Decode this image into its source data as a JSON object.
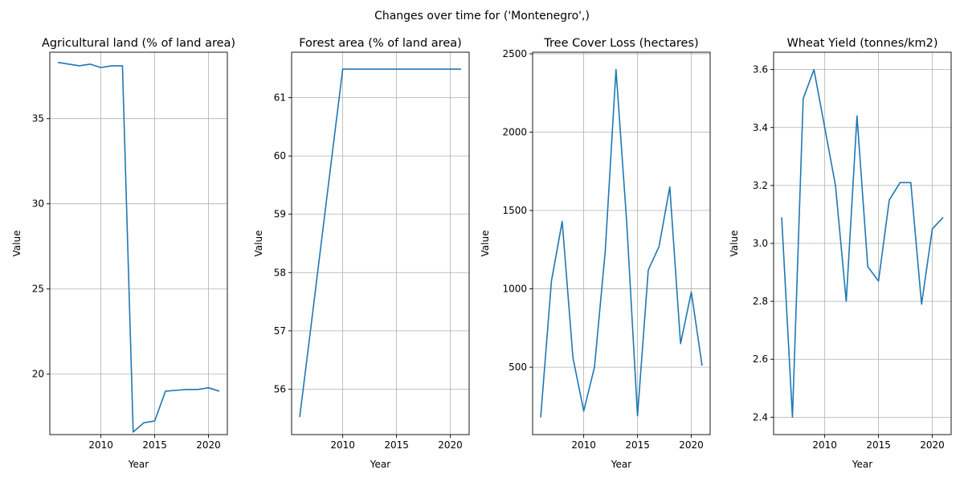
{
  "figure": {
    "suptitle": "Changes over time for ('Montenegro',)",
    "line_color": "#1f77b4",
    "grid_color": "#b0b0b0"
  },
  "chart_data": [
    {
      "type": "line",
      "title": "Agricultural land (% of land area)",
      "xlabel": "Year",
      "ylabel": "Value",
      "grid": true,
      "xlim": [
        2005.25,
        2021.75
      ],
      "ylim": [
        16.45,
        38.9
      ],
      "xticks": [
        2010,
        2015,
        2020
      ],
      "yticks": [
        20,
        25,
        30,
        35
      ],
      "x": [
        2006,
        2007,
        2008,
        2009,
        2010,
        2011,
        2012,
        2013,
        2014,
        2015,
        2016,
        2017,
        2018,
        2019,
        2020,
        2021
      ],
      "y": [
        38.3,
        38.2,
        38.1,
        38.2,
        38.0,
        38.1,
        38.1,
        16.6,
        17.15,
        17.25,
        19.0,
        19.05,
        19.1,
        19.1,
        19.2,
        19.0
      ]
    },
    {
      "type": "line",
      "title": "Forest area (% of land area)",
      "xlabel": "Year",
      "ylabel": "Value",
      "grid": true,
      "xlim": [
        2005.25,
        2021.75
      ],
      "ylim": [
        55.22,
        61.78
      ],
      "xticks": [
        2010,
        2015,
        2020
      ],
      "yticks": [
        56,
        57,
        58,
        59,
        60,
        61
      ],
      "x": [
        2006,
        2007,
        2008,
        2009,
        2010,
        2011,
        2012,
        2013,
        2014,
        2015,
        2016,
        2017,
        2018,
        2019,
        2020,
        2021
      ],
      "y": [
        55.52,
        57.0,
        58.5,
        60.0,
        61.49,
        61.49,
        61.49,
        61.49,
        61.49,
        61.49,
        61.49,
        61.49,
        61.49,
        61.49,
        61.49,
        61.49
      ]
    },
    {
      "type": "line",
      "title": "Tree Cover Loss (hectares)",
      "xlabel": "Year",
      "ylabel": "Value",
      "grid": true,
      "xlim": [
        2005.25,
        2021.75
      ],
      "ylim": [
        70,
        2510
      ],
      "xticks": [
        2010,
        2015,
        2020
      ],
      "yticks": [
        500,
        1000,
        1500,
        2000,
        2500
      ],
      "x": [
        2006,
        2007,
        2008,
        2009,
        2010,
        2011,
        2012,
        2013,
        2014,
        2015,
        2016,
        2017,
        2018,
        2019,
        2020,
        2021
      ],
      "y": [
        180,
        1050,
        1430,
        560,
        220,
        500,
        1240,
        2400,
        1420,
        190,
        1120,
        1270,
        1650,
        650,
        980,
        510
      ]
    },
    {
      "type": "line",
      "title": "Wheat Yield (tonnes/km2)",
      "xlabel": "Year",
      "ylabel": "Value",
      "grid": true,
      "xlim": [
        2005.25,
        2021.75
      ],
      "ylim": [
        2.34,
        3.66
      ],
      "xticks": [
        2010,
        2015,
        2020
      ],
      "yticks": [
        2.4,
        2.6,
        2.8,
        3.0,
        3.2,
        3.4,
        3.6
      ],
      "x": [
        2006,
        2007,
        2008,
        2009,
        2010,
        2011,
        2012,
        2013,
        2014,
        2015,
        2016,
        2017,
        2018,
        2019,
        2020,
        2021
      ],
      "y": [
        3.09,
        2.4,
        3.5,
        3.6,
        3.4,
        3.2,
        2.8,
        3.44,
        2.92,
        2.87,
        3.15,
        3.21,
        3.21,
        2.79,
        3.05,
        3.09
      ]
    }
  ]
}
